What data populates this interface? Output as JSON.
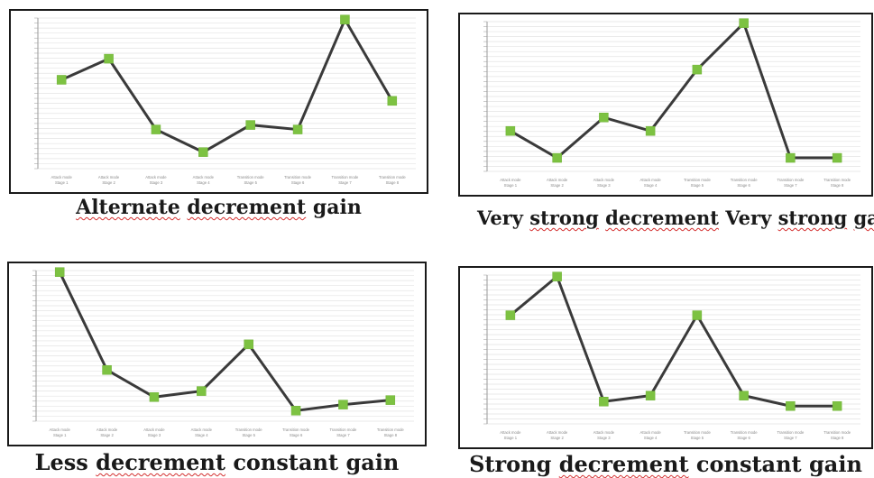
{
  "chart_data": [
    {
      "type": "line",
      "caption": "Alternate decrement gain",
      "ylim": [
        0,
        10
      ],
      "grid": true,
      "line_color": "#3a3a3a",
      "marker_color": "#7dc242",
      "categories": [
        "Attack mode Stage 1",
        "Attack mode Stage 2",
        "Attack mode Stage 3",
        "Attack mode Stage 4",
        "Transition mode Stage 5",
        "Transition mode Stage 6",
        "Transition mode Stage 7",
        "Transition mode Stage 8"
      ],
      "values": [
        5.9,
        7.3,
        2.6,
        1.1,
        2.9,
        2.6,
        9.9,
        4.5
      ]
    },
    {
      "type": "line",
      "caption": "Very strong decrement Very strong gain",
      "ylim": [
        0,
        10
      ],
      "grid": true,
      "line_color": "#3a3a3a",
      "marker_color": "#7dc242",
      "categories": [
        "Attack mode Stage 1",
        "Attack mode Stage 2",
        "Attack mode Stage 3",
        "Attack mode Stage 4",
        "Transition mode Stage 5",
        "Transition mode Stage 6",
        "Transition mode Stage 7",
        "Transition mode Stage 8"
      ],
      "values": [
        2.7,
        0.9,
        3.6,
        2.7,
        6.8,
        9.9,
        0.9,
        0.9
      ]
    },
    {
      "type": "line",
      "caption": "Less decrement constant gain",
      "ylim": [
        0,
        10
      ],
      "grid": true,
      "line_color": "#3a3a3a",
      "marker_color": "#7dc242",
      "categories": [
        "Attack mode Stage 1",
        "Attack mode Stage 2",
        "Attack mode Stage 3",
        "Attack mode Stage 4",
        "Transition mode Stage 5",
        "Transition mode Stage 6",
        "Transition mode Stage 7",
        "Transition mode Stage 8"
      ],
      "values": [
        9.9,
        3.4,
        1.6,
        2.0,
        5.1,
        0.7,
        1.1,
        1.4
      ]
    },
    {
      "type": "line",
      "caption": "Strong decrement constant gain",
      "ylim": [
        0,
        10
      ],
      "grid": true,
      "line_color": "#3a3a3a",
      "marker_color": "#7dc242",
      "categories": [
        "Attack mode Stage 1",
        "Attack mode Stage 2",
        "Attack mode Stage 3",
        "Attack mode Stage 4",
        "Transition mode Stage 5",
        "Transition mode Stage 6",
        "Transition mode Stage 7",
        "Transition mode Stage 8"
      ],
      "values": [
        7.3,
        9.9,
        1.5,
        1.9,
        7.3,
        1.9,
        1.2,
        1.2
      ]
    }
  ]
}
